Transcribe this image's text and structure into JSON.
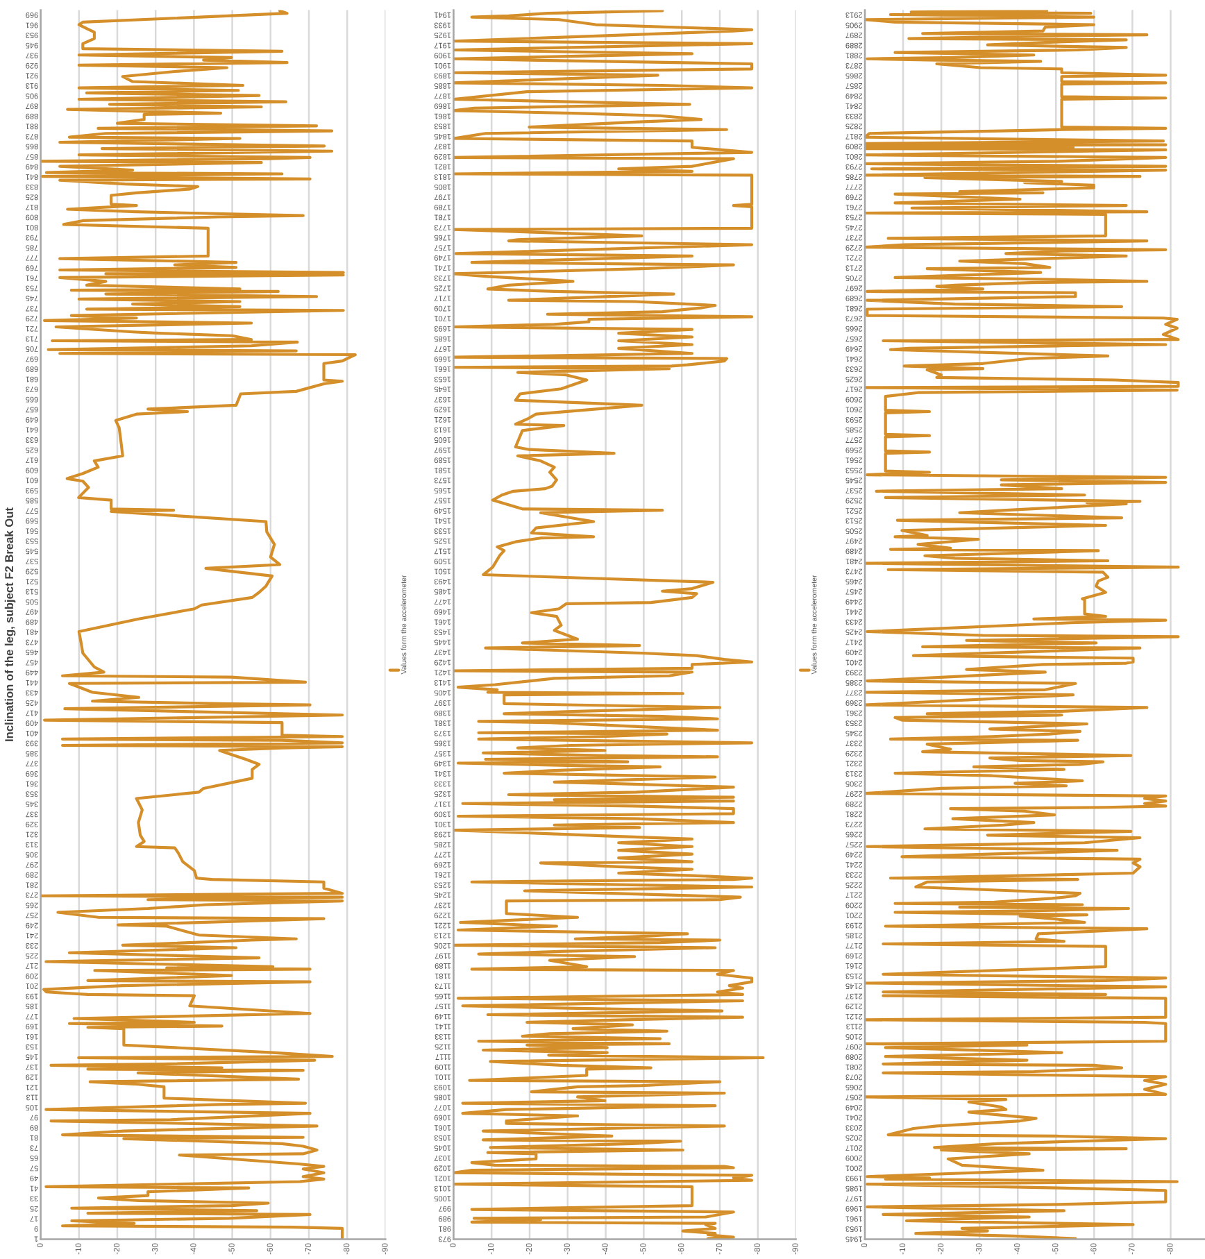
{
  "chart_data": [
    {
      "type": "line",
      "orientation": "horizontal",
      "title": "Inclination of the leg, subject F2 Break Out",
      "grid": "x",
      "legend": "right",
      "xlim": [
        0,
        -90
      ],
      "xticks": [
        0,
        -10,
        -20,
        -30,
        -40,
        -50,
        -60,
        -70,
        -80,
        -90
      ],
      "ylim": [
        0.5,
        972.5
      ],
      "yticks": [
        1,
        9,
        17,
        25,
        33,
        41,
        49,
        57,
        65,
        73,
        81,
        89,
        97,
        105,
        113,
        121,
        129,
        137,
        145,
        153,
        161,
        169,
        177,
        185,
        193,
        201,
        209,
        217,
        225,
        233,
        241,
        249,
        257,
        265,
        273,
        281,
        289,
        297,
        305,
        313,
        321,
        329,
        337,
        345,
        353,
        361,
        369,
        377,
        385,
        393,
        401,
        409,
        417,
        425,
        433,
        441,
        449,
        457,
        465,
        473,
        481,
        489,
        497,
        505,
        513,
        521,
        529,
        537,
        545,
        553,
        561,
        569,
        577,
        585,
        593,
        601,
        609,
        617,
        625,
        633,
        641,
        649,
        657,
        665,
        673,
        681,
        689,
        697,
        705,
        713,
        721,
        729,
        737,
        745,
        753,
        761,
        769,
        777,
        785,
        793,
        801,
        809,
        817,
        825,
        833,
        841,
        849,
        857,
        865,
        873,
        881,
        889,
        897,
        905,
        913,
        921,
        929,
        937,
        945,
        953,
        961,
        969
      ],
      "x": [
        1,
        9,
        10,
        11,
        13,
        15,
        17,
        20,
        21,
        23,
        25,
        27,
        29,
        31,
        33,
        35,
        38,
        41,
        42,
        46,
        48,
        50,
        53,
        56,
        58,
        60,
        67,
        68,
        71,
        74,
        76,
        80,
        81,
        83,
        86,
        90,
        94,
        95,
        100,
        103,
        107,
        108,
        112,
        121,
        123,
        125,
        127,
        132,
        134,
        135,
        136,
        138,
        139,
        142,
        144,
        145,
        148,
        152,
        154,
        167,
        168,
        169,
        171,
        172,
        175,
        179,
        185,
        193,
        194,
        196,
        198,
        201,
        204,
        205,
        209,
        213,
        214,
        215,
        216,
        220,
        223,
        227,
        231,
        233,
        237,
        238,
        241,
        248,
        249,
        254,
        255,
        259,
        262,
        265,
        268,
        269,
        271,
        272,
        274,
        278,
        283,
        285,
        286,
        292,
        299,
        306,
        310,
        311,
        315,
        320,
        330,
        340,
        349,
        354,
        357,
        365,
        372,
        376,
        380,
        385,
        387,
        389,
        390,
        391,
        393,
        395,
        396,
        398,
        399,
        409,
        411,
        415,
        420,
        423,
        424,
        426,
        429,
        433,
        440,
        441,
        445,
        446,
        449,
        453,
        464,
        473,
        481,
        491,
        499,
        502,
        508,
        512,
        517,
        525,
        531,
        534,
        540,
        550,
        560,
        568,
        576,
        577,
        578,
        585,
        587,
        595,
        600,
        602,
        606,
        611,
        616,
        620,
        630,
        642,
        648,
        653,
        655,
        657,
        660,
        669,
        671,
        677,
        679,
        680,
        693,
        695,
        700,
        701,
        703,
        704,
        707,
        710,
        711,
        712,
        715,
        717,
        718,
        722,
        725,
        727,
        729,
        731,
        735,
        736,
        738,
        740,
        742,
        744,
        746,
        748,
        750,
        751,
        752,
        755,
        758,
        761,
        763,
        764,
        765,
        767,
        769,
        771,
        773,
        776,
        778,
        800,
        803,
        806,
        809,
        810,
        813,
        815,
        818,
        819,
        826,
        828,
        831,
        833,
        835,
        838,
        839,
        841,
        843,
        844,
        846,
        849,
        852,
        853,
        855,
        856,
        858,
        861,
        863,
        865,
        868,
        871,
        872,
        875,
        877,
        879,
        881,
        883,
        886,
        890,
        891,
        894,
        896,
        898,
        900,
        902,
        905,
        907,
        909,
        911,
        913,
        916,
        920,
        924,
        927,
        929,
        931,
        933,
        935,
        937,
        940,
        942,
        946,
        950,
        955,
        958,
        961,
        963,
        970,
        972
      ],
      "series": [
        {
          "name": "Values form the accelerometer",
          "color": "#d58f2a",
          "values": [
            -78.7,
            -78.7,
            -65.7,
            -5.7,
            -24.4,
            -8.1,
            -49.2,
            -70.3,
            -12.3,
            -56.4,
            -8.1,
            -49.8,
            -59.4,
            -25.6,
            -15.1,
            -28,
            -28,
            -54.3,
            -1.4,
            -67.6,
            -73.9,
            -68.5,
            -73.9,
            -68.5,
            -73.9,
            -67.3,
            -36.2,
            -68.5,
            -72.1,
            -68.5,
            -63,
            -21.7,
            -68.5,
            -5.7,
            -21.7,
            -72.1,
            -2.7,
            -34,
            -70.3,
            -1.4,
            -46.7,
            -69.1,
            -32.2,
            -32.2,
            -25.4,
            -12.9,
            -67.3,
            -25.4,
            -68.5,
            -12.3,
            -47.3,
            -2.7,
            -31.9,
            -71.5,
            -9.9,
            -76.1,
            -60.6,
            -35,
            -21.7,
            -21.7,
            -12.3,
            -47.3,
            -7.5,
            -40.1,
            -8.7,
            -70.3,
            -38.9,
            -40.1,
            -12.3,
            -1.5,
            -0.8,
            -21.4,
            -70.3,
            -12.3,
            -49.8,
            -14.1,
            -70.3,
            -32.9,
            -60.6,
            -1.4,
            -57,
            -7.5,
            -51,
            -21.4,
            -55.2,
            -66.7,
            -41.3,
            -32.9,
            -20.2,
            -73.9,
            -15.1,
            -4.5,
            -28,
            -43.1,
            -78.7,
            -28,
            -78.7,
            0,
            -78.7,
            -73.9,
            -73.9,
            -44.7,
            -40.7,
            -40.1,
            -37.1,
            -35.9,
            -35,
            -25,
            -27,
            -26,
            -25.5,
            -26.5,
            -25,
            -41.3,
            -42.5,
            -55.2,
            -55.2,
            -57,
            -53.5,
            -48.6,
            -46.7,
            -63,
            -78.7,
            -5.7,
            -78.7,
            -63,
            -5.7,
            -78.7,
            -63,
            -63,
            -1,
            -78.7,
            -6.3,
            -70.3,
            -46.7,
            -13.5,
            -25.6,
            -13.5,
            -7.5,
            -69.1,
            -49.8,
            -5.7,
            -16.5,
            -14,
            -11,
            -10.5,
            -10,
            -25.6,
            -40.1,
            -42,
            -55.2,
            -57,
            -58.8,
            -60.4,
            -43.1,
            -62.4,
            -60,
            -61,
            -59,
            -58.8,
            -18.4,
            -34.7,
            -18.4,
            -18.4,
            -9.9,
            -12.5,
            -11,
            -6.9,
            -11,
            -15,
            -14,
            -21.4,
            -21,
            -20.5,
            -19.6,
            -25,
            -38.3,
            -28,
            -51,
            -52.2,
            -66.7,
            -73.9,
            -78.7,
            -73.9,
            -73.9,
            -78.7,
            -82.1,
            -5,
            -66.7,
            -2,
            -55,
            -67,
            -3,
            -55,
            -50,
            -31,
            -24,
            -4,
            -55,
            -1,
            -25,
            -8,
            -79,
            -12,
            -52,
            -24,
            -52,
            -10,
            -72,
            -17,
            -62,
            -8,
            -52,
            -12,
            -17,
            -5,
            -79,
            -17,
            -79,
            -5,
            -51,
            -35,
            -51,
            -5,
            -43.7,
            -43.7,
            -6,
            -11,
            -46.4,
            -68.5,
            -25,
            -7,
            -25,
            -18.4,
            -18.4,
            -25,
            -39,
            -41,
            -22,
            -5,
            -70.3,
            -0.5,
            -63,
            -1.5,
            -24,
            -5,
            -57.6,
            0,
            -59.4,
            -70.3,
            -10,
            -76,
            -16,
            -74,
            -5,
            -52,
            -7.5,
            -17,
            -76,
            -15,
            -72,
            -20,
            -27,
            -27,
            -47,
            -7,
            -57.6,
            -18,
            -64,
            -10,
            -57,
            -12,
            -51.6,
            -10,
            -52.8,
            -24,
            -21.4,
            -35,
            -48.6,
            -10,
            -64.3,
            -42.5,
            -49.8,
            -10,
            -63,
            -11,
            -11,
            -14,
            -14,
            -12,
            -10,
            -11,
            -64.3,
            -62.4
          ]
        }
      ]
    },
    {
      "type": "line",
      "orientation": "horizontal",
      "grid": "x",
      "legend": "right",
      "xlim": [
        0,
        -90
      ],
      "xticks": [
        0,
        -10,
        -20,
        -30,
        -40,
        -50,
        -60,
        -70,
        -80,
        -90
      ],
      "ylim": [
        972.5,
        1944.5
      ],
      "yticks": [
        973,
        981,
        989,
        997,
        1005,
        1013,
        1021,
        1029,
        1037,
        1045,
        1053,
        1061,
        1069,
        1077,
        1085,
        1093,
        1101,
        1109,
        1117,
        1125,
        1133,
        1141,
        1149,
        1157,
        1165,
        1173,
        1181,
        1189,
        1197,
        1205,
        1213,
        1221,
        1229,
        1237,
        1245,
        1253,
        1261,
        1269,
        1277,
        1285,
        1293,
        1301,
        1309,
        1317,
        1325,
        1333,
        1341,
        1349,
        1357,
        1365,
        1373,
        1381,
        1389,
        1397,
        1405,
        1413,
        1421,
        1429,
        1437,
        1445,
        1453,
        1461,
        1469,
        1477,
        1485,
        1493,
        1501,
        1509,
        1517,
        1525,
        1533,
        1541,
        1549,
        1557,
        1565,
        1573,
        1581,
        1589,
        1597,
        1605,
        1613,
        1621,
        1629,
        1637,
        1645,
        1653,
        1661,
        1669,
        1677,
        1685,
        1693,
        1701,
        1709,
        1717,
        1725,
        1733,
        1741,
        1749,
        1757,
        1765,
        1773,
        1781,
        1789,
        1797,
        1805,
        1813,
        1821,
        1829,
        1837,
        1845,
        1853,
        1861,
        1869,
        1877,
        1885,
        1893,
        1901,
        1909,
        1917,
        1925,
        1933,
        1941
      ],
      "x": [
        973,
        974,
        976,
        977,
        979,
        981,
        984,
        985,
        986,
        988,
        989,
        990,
        994,
        996,
        999,
        1014,
        1016,
        1019,
        1021,
        1023,
        1025,
        1027,
        1029,
        1030,
        1031,
        1033,
        1036,
        1040,
        1041,
        1043,
        1045,
        1048,
        1050,
        1051,
        1054,
        1058,
        1062,
        1064,
        1066,
        1070,
        1072,
        1075,
        1078,
        1080,
        1082,
        1085,
        1088,
        1089,
        1093,
        1094,
        1097,
        1098,
        1102,
        1107,
        1108,
        1110,
        1113,
        1116,
        1118,
        1120,
        1122,
        1124,
        1126,
        1127,
        1129,
        1131,
        1133,
        1135,
        1137,
        1139,
        1142,
        1144,
        1146,
        1148,
        1150,
        1153,
        1155,
        1157,
        1161,
        1163,
        1166,
        1168,
        1171,
        1173,
        1176,
        1179,
        1182,
        1185,
        1186,
        1188,
        1193,
        1196,
        1198,
        1200,
        1203,
        1205,
        1207,
        1209,
        1210,
        1212,
        1214,
        1217,
        1220,
        1223,
        1227,
        1230,
        1240,
        1241,
        1243,
        1248,
        1251,
        1255,
        1257,
        1258,
        1260,
        1262,
        1265,
        1267,
        1270,
        1271,
        1274,
        1277,
        1280,
        1283,
        1286,
        1289,
        1291,
        1296,
        1298,
        1300,
        1302,
        1305,
        1307,
        1309,
        1313,
        1315,
        1317,
        1319,
        1320,
        1322,
        1324,
        1326,
        1330,
        1333,
        1334,
        1338,
        1341,
        1343,
        1346,
        1347,
        1349,
        1350,
        1352,
        1354,
        1355,
        1357,
        1359,
        1361,
        1363,
        1365,
        1368,
        1370,
        1372,
        1373,
        1375,
        1381,
        1382,
        1384,
        1386,
        1388,
        1390,
        1393,
        1396,
        1403,
        1404,
        1405,
        1407,
        1409,
        1411,
        1416,
        1418,
        1421,
        1422,
        1424,
        1427,
        1429,
        1431,
        1434,
        1436,
        1440,
        1442,
        1444,
        1447,
        1454,
        1458,
        1465,
        1468,
        1471,
        1475,
        1476,
        1480,
        1483,
        1485,
        1487,
        1492,
        1498,
        1504,
        1513,
        1517,
        1520,
        1524,
        1527,
        1528,
        1531,
        1535,
        1540,
        1547,
        1549,
        1550,
        1557,
        1561,
        1564,
        1566,
        1568,
        1573,
        1579,
        1583,
        1588,
        1592,
        1594,
        1597,
        1599,
        1612,
        1616,
        1617,
        1621,
        1625,
        1632,
        1636,
        1641,
        1645,
        1652,
        1656,
        1658,
        1661,
        1662,
        1663,
        1664,
        1667,
        1669,
        1670,
        1673,
        1677,
        1680,
        1683,
        1686,
        1689,
        1692,
        1694,
        1696,
        1698,
        1700,
        1702,
        1704,
        1706,
        1709,
        1711,
        1714,
        1715,
        1720,
        1722,
        1724,
        1727,
        1730,
        1734,
        1736,
        1740,
        1743,
        1745,
        1750,
        1752,
        1759,
        1762,
        1763,
        1766,
        1771,
        1772,
        1789,
        1790,
        1791,
        1814,
        1815,
        1817,
        1819,
        1821,
        1827,
        1828,
        1832,
        1836,
        1841,
        1843,
        1847,
        1850,
        1852,
        1856,
        1858,
        1861,
        1863,
        1865,
        1867,
        1870,
        1874,
        1880,
        1883,
        1885,
        1887,
        1893,
        1895,
        1898,
        1902,
        1906,
        1910,
        1913,
        1918,
        1920,
        1928,
        1929,
        1933,
        1937,
        1939,
        1940,
        1942,
        1944
      ],
      "series": [
        {
          "name": "Values form the accelerometer",
          "color": "#d58f2a",
          "values": [
            -66.9,
            -73.6,
            -66.9,
            -68.8,
            -60.3,
            -68.8,
            -66.3,
            -68.8,
            -4.8,
            -22.9,
            -5.4,
            -66.3,
            -73.6,
            -4.8,
            -62.7,
            -62.7,
            0,
            -78.4,
            -73.6,
            -78.4,
            0,
            -4.8,
            -73.6,
            -71.2,
            -10.9,
            -4.8,
            -21.7,
            -21.7,
            -9,
            -60.3,
            -9.7,
            -47,
            -59.7,
            -7.8,
            -41.6,
            -7.8,
            -71.2,
            -13.9,
            -13.9,
            -32.6,
            -2.4,
            -13.9,
            -68.8,
            -2.4,
            -39.8,
            -32.6,
            -71.2,
            -20.5,
            -32.6,
            -49.5,
            -70,
            -4.2,
            -35,
            -35,
            -51.9,
            -28.3,
            -9.7,
            -81.4,
            -25,
            -40.4,
            -7.8,
            -40.4,
            -19.3,
            -56.7,
            -6.6,
            -54.3,
            -18.1,
            -25.3,
            -56.1,
            -31.4,
            -47,
            -19.3,
            -45,
            -76,
            -9,
            -70.6,
            -32.6,
            -2.4,
            -76,
            -1.2,
            -76,
            -69.4,
            -76,
            -72.5,
            -78.4,
            -78.4,
            -69.4,
            -73.6,
            -4.8,
            -35,
            -25.3,
            -47.6,
            -6.6,
            -27.7,
            -68.8,
            0,
            -54.3,
            -70,
            -32,
            -49.5,
            -61.5,
            -1.2,
            -27.1,
            -1.8,
            -32.6,
            -13.9,
            -13.9,
            -70,
            -75.4,
            -18.7,
            -78.4,
            -4.8,
            -73.6,
            -78.4,
            -62.7,
            -43.4,
            -62.7,
            -43.4,
            -22.9,
            -62.7,
            -43.4,
            -62.7,
            -43.4,
            -62.7,
            -43.4,
            -62.7,
            -43.4,
            0,
            -48.9,
            -26.5,
            -73.6,
            -48.3,
            -1.2,
            -73.6,
            -73.6,
            -47.6,
            -2.4,
            -73.6,
            -26.5,
            -73.6,
            -14.5,
            -48,
            -73.6,
            -39.8,
            -26.5,
            -68.8,
            -13.3,
            -25.3,
            -54.3,
            -32,
            -1.2,
            -45.8,
            -8.4,
            -69.4,
            -38.6,
            -7.8,
            -39.8,
            -16.9,
            -30.8,
            -78.4,
            -6.6,
            -39.2,
            -56.1,
            -6.6,
            -69.4,
            -25.3,
            -6.6,
            -69.4,
            -54.9,
            -13.3,
            -32.6,
            -70,
            -13.3,
            -13.3,
            -60.3,
            -9,
            -11.5,
            -1.2,
            -10.9,
            -26.5,
            -56.7,
            -62.7,
            0,
            -62.7,
            -62.7,
            -78.4,
            -71.2,
            -63.9,
            -49.5,
            -8.4,
            -48.9,
            -18.1,
            -32.6,
            -26.5,
            -28.3,
            -27.1,
            -20.5,
            -27.7,
            -29.6,
            -51.9,
            -62.7,
            -63.9,
            -54.9,
            -62.7,
            -68.2,
            -7.8,
            -10.3,
            -12.1,
            -13.3,
            -11.5,
            -16.3,
            -22.9,
            -36.8,
            -20.5,
            -21.7,
            -36.8,
            -22.9,
            -54.9,
            -18.1,
            -10.3,
            -12.7,
            -15.7,
            -24.1,
            -25.9,
            -27.1,
            -25.3,
            -26.5,
            -22.9,
            -16.9,
            -42.2,
            -19.9,
            -16.3,
            -18.1,
            -29,
            -16.3,
            -19.3,
            -21.7,
            -49.5,
            -16.3,
            -17.5,
            -28.3,
            -35,
            -29.6,
            -16.9,
            -56.7,
            0,
            -57.3,
            -61.5,
            -71.2,
            -71.8,
            0,
            -62.7,
            -43.4,
            -62.7,
            -43.4,
            -62.7,
            -43.4,
            -62.7,
            0,
            -26.5,
            -35.6,
            -35.6,
            -78.4,
            -24.7,
            -54.9,
            -65,
            -68.8,
            -47.6,
            -14.5,
            -57.9,
            -26.5,
            -9,
            -14.5,
            -31.4,
            -8.4,
            0,
            -49.5,
            -73.6,
            -4.8,
            -62.7,
            -0.6,
            -78.4,
            -14.5,
            -16.9,
            -49.5,
            0,
            -78.4,
            -78.4,
            -73.6,
            -78.4,
            -78.4,
            0,
            -62.7,
            -43.4,
            -62.7,
            -73.6,
            0,
            -78.4,
            -62.7,
            -62.7,
            0,
            -8.4,
            -71.8,
            -19.9,
            -47.6,
            -65.1,
            -54.3,
            -31.4,
            0,
            -5.4,
            -62.1,
            0,
            -19.3,
            -78.4,
            -54.9,
            0,
            -53.7,
            0,
            -78.4,
            -78.4,
            0,
            -62.7,
            0,
            -78.4,
            0,
            -73.6,
            -78.4,
            -37.4,
            -27.7,
            -4.8,
            -14.5,
            -24.7,
            -54.9
          ]
        }
      ]
    },
    {
      "type": "line",
      "orientation": "horizontal",
      "grid": "x",
      "xlim": [
        0,
        -89
      ],
      "xticks": [
        0,
        -10,
        -20,
        -30,
        -40,
        -50,
        -60,
        -70,
        -80
      ],
      "ylim": [
        1944.5,
        2916.5
      ],
      "yticks": [
        1945,
        1953,
        1961,
        1969,
        1977,
        1985,
        1993,
        2001,
        2009,
        2017,
        2025,
        2033,
        2041,
        2049,
        2057,
        2065,
        2073,
        2081,
        2089,
        2097,
        2105,
        2113,
        2121,
        2129,
        2137,
        2145,
        2153,
        2161,
        2169,
        2177,
        2185,
        2193,
        2201,
        2209,
        2217,
        2225,
        2233,
        2241,
        2249,
        2257,
        2265,
        2273,
        2281,
        2289,
        2297,
        2305,
        2313,
        2321,
        2329,
        2337,
        2345,
        2353,
        2361,
        2369,
        2377,
        2385,
        2393,
        2401,
        2409,
        2417,
        2425,
        2433,
        2441,
        2449,
        2457,
        2465,
        2473,
        2481,
        2489,
        2497,
        2505,
        2513,
        2521,
        2529,
        2537,
        2545,
        2553,
        2561,
        2569,
        2577,
        2585,
        2593,
        2601,
        2609,
        2617,
        2625,
        2633,
        2641,
        2649,
        2657,
        2665,
        2673,
        2681,
        2689,
        2697,
        2705,
        2713,
        2721,
        2729,
        2737,
        2745,
        2753,
        2761,
        2769,
        2777,
        2785,
        2793,
        2801,
        2809,
        2817,
        2825,
        2833,
        2841,
        2849,
        2857,
        2865,
        2873,
        2881,
        2889,
        2897,
        2905,
        2913
      ],
      "x": [
        1945,
        1947,
        1949,
        1951,
        1953,
        1956,
        1959,
        1960,
        1962,
        1964,
        1967,
        1970,
        1972,
        1974,
        1976,
        1983,
        1985,
        1988,
        1990,
        1992,
        1993,
        1994,
        1999,
        2003,
        2008,
        2012,
        2015,
        2016,
        2017,
        2020,
        2022,
        2024,
        2026,
        2027,
        2032,
        2034,
        2038,
        2040,
        2045,
        2047,
        2049,
        2053,
        2055,
        2057,
        2059,
        2063,
        2067,
        2070,
        2073,
        2076,
        2077,
        2080,
        2082,
        2083,
        2086,
        2089,
        2092,
        2096,
        2098,
        2099,
        2101,
        2115,
        2116,
        2118,
        2120,
        2135,
        2137,
        2138,
        2140,
        2144,
        2147,
        2149,
        2151,
        2154,
        2160,
        2176,
        2178,
        2180,
        2182,
        2186,
        2190,
        2192,
        2195,
        2198,
        2200,
        2201,
        2203,
        2204,
        2206,
        2207,
        2209,
        2210,
        2211,
        2214,
        2216,
        2218,
        2223,
        2227,
        2229,
        2230,
        2232,
        2234,
        2239,
        2242,
        2245,
        2247,
        2252,
        2255,
        2258,
        2262,
        2264,
        2267,
        2269,
        2272,
        2274,
        2277,
        2280,
        2283,
        2285,
        2286,
        2287,
        2289,
        2291,
        2293,
        2295,
        2297,
        2301,
        2303,
        2305,
        2307,
        2311,
        2313,
        2316,
        2318,
        2320,
        2322,
        2323,
        2325,
        2327,
        2330,
        2332,
        2336,
        2339,
        2340,
        2342,
        2344,
        2346,
        2348,
        2352,
        2355,
        2357,
        2359,
        2360,
        2362,
        2365,
        2367,
        2375,
        2377,
        2379,
        2384,
        2386,
        2393,
        2395,
        2399,
        2400,
        2401,
        2404,
        2406,
        2412,
        2413,
        2416,
        2418,
        2421,
        2422,
        2425,
        2432,
        2434,
        2435,
        2437,
        2439,
        2450,
        2451,
        2456,
        2461,
        2465,
        2468,
        2472,
        2474,
        2476,
        2479,
        2481,
        2483,
        2485,
        2489,
        2490,
        2491,
        2494,
        2498,
        2500,
        2501,
        2505,
        2509,
        2513,
        2515,
        2519,
        2521,
        2526,
        2527,
        2528,
        2531,
        2533,
        2536,
        2538,
        2541,
        2543,
        2545,
        2547,
        2549,
        2551,
        2552,
        2566,
        2567,
        2568,
        2579,
        2580,
        2581,
        2598,
        2599,
        2600,
        2611,
        2614,
        2616,
        2618,
        2619,
        2622,
        2624,
        2626,
        2628,
        2632,
        2633,
        2635,
        2637,
        2641,
        2643,
        2644,
        2648,
        2649,
        2651,
        2652,
        2655,
        2656,
        2660,
        2665,
        2668,
        2672,
        2673,
        2675,
        2680,
        2682,
        2684,
        2687,
        2690,
        2693,
        2694,
        2696,
        2698,
        2699,
        2701,
        2702,
        2704,
        2705,
        2709,
        2712,
        2713,
        2716,
        2718,
        2722,
        2724,
        2726,
        2727,
        2729,
        2731,
        2734,
        2736,
        2738,
        2755,
        2756,
        2757,
        2760,
        2762,
        2764,
        2767,
        2771,
        2772,
        2773,
        2776,
        2778,
        2780,
        2781,
        2784,
        2785,
        2786,
        2790,
        2791,
        2793,
        2795,
        2797,
        2800,
        2802,
        2806,
        2807,
        2808,
        2809,
        2810,
        2811,
        2813,
        2814,
        2816,
        2819,
        2821,
        2822,
        2823,
        2824,
        2846,
        2847,
        2848,
        2858,
        2859,
        2860,
        2864,
        2865,
        2867,
        2870,
        2871,
        2874,
        2876,
        2877,
        2878,
        2879,
        2881,
        2883,
        2885,
        2887,
        2889,
        2891,
        2893,
        2894,
        2896,
        2897,
        2898,
        2900,
        2903,
        2905,
        2907,
        2909,
        2911,
        2913,
        2914,
        2915,
        2916
      ],
      "series": [
        {
          "color": "#d58f2a",
          "values": [
            -55.1,
            -38.7,
            -13.3,
            -32.1,
            -25.4,
            -70.2,
            -10.9,
            -18.2,
            -43,
            -4.8,
            -52.1,
            -0.6,
            -50.8,
            -78.7,
            -78.7,
            -78.7,
            -50.8,
            -0.6,
            -81.7,
            -5.4,
            -16.9,
            -0.6,
            -46.6,
            -25.4,
            -21.8,
            -43,
            -20,
            -68.4,
            -18.2,
            -34.5,
            -56.3,
            -78.7,
            -50.2,
            -6.1,
            -12.7,
            -18.8,
            -40.6,
            -44.8,
            -27.2,
            -36.9,
            -35.7,
            -27.2,
            -36.9,
            0,
            -78.7,
            -73.2,
            -78.7,
            -73.2,
            -78.7,
            -4.8,
            -44.2,
            -67.2,
            -59.9,
            -4.8,
            -42.4,
            -5.4,
            -51.5,
            -5.4,
            -42.4,
            0,
            -78.7,
            -78.7,
            -73.2,
            0,
            -78.7,
            -78.7,
            -4.8,
            -63,
            -4.8,
            -78.7,
            0,
            -63,
            -78.7,
            -4.8,
            -63,
            -63,
            -4.8,
            -52.1,
            -44.8,
            -45.4,
            -73.8,
            -5.4,
            -57.5,
            -49,
            -40.6,
            -58.1,
            -7.9,
            -40.6,
            -69,
            -24.8,
            -56.9,
            -7.9,
            -33.9,
            -49,
            -55.1,
            -56.3,
            -13.3,
            -16.3,
            -55.7,
            -6.7,
            -40.6,
            -70.2,
            -72,
            -70.2,
            -72,
            -9.7,
            -66,
            -0.6,
            -57.5,
            -72,
            -32.1,
            -69.6,
            -15.7,
            -36.3,
            -44.2,
            -23,
            -49.6,
            -41.8,
            -22.4,
            -63,
            -78.7,
            -73.2,
            -78.7,
            -73.2,
            -78.7,
            0,
            -20,
            -52.7,
            -39.3,
            -56.9,
            -33.3,
            -7.9,
            -52.1,
            -28.5,
            -56.3,
            -62.3,
            -40.6,
            -32.7,
            -69.6,
            -15.1,
            -22.4,
            -16.3,
            -55.7,
            -6.7,
            -33.3,
            -48.4,
            -56.3,
            -32.7,
            -58.1,
            -9.7,
            -7.9,
            -51.5,
            -16.3,
            -51.5,
            -73.8,
            0,
            -54.5,
            0,
            -47.2,
            -55.1,
            -0.6,
            -47.2,
            -26.6,
            -46.6,
            -68.4,
            -70.2,
            -70.2,
            -12.7,
            -72,
            -15.1,
            -60.5,
            -26.6,
            -82,
            -30.9,
            -0.6,
            -53.9,
            -78.7,
            -44.2,
            -63,
            -57.5,
            -57.5,
            -56.9,
            -63,
            -60.5,
            -61.1,
            -63.6,
            -62.3,
            -6.1,
            -82,
            0,
            -63.6,
            -23.6,
            -15.7,
            -61.1,
            -6.7,
            -22.4,
            -13.9,
            -29.7,
            -7.9,
            -16.3,
            -9.7,
            -63,
            -8.5,
            -67.2,
            -24.8,
            -36.9,
            -68.4,
            -58.1,
            -72,
            -5.4,
            -57.5,
            -3,
            -51.5,
            -35.7,
            -78.7,
            -35.7,
            -78.7,
            -0.6,
            -16.9,
            -5.4,
            -5.4,
            -16.9,
            -5.4,
            -5.4,
            -16.9,
            -5.4,
            -5.4,
            -16.9,
            -5.4,
            -5.4,
            -13.9,
            -81.7,
            0,
            -82,
            -82,
            -65.4,
            -18.8,
            -20,
            -16.3,
            -30.9,
            -10.3,
            -30.9,
            -43,
            -63.6,
            -52.1,
            -6.7,
            -11.5,
            -51.5,
            -78.7,
            -4.8,
            -82,
            -78.1,
            -81.7,
            -78.7,
            -81.7,
            -78.1,
            -0.6,
            -0.6,
            -67.2,
            -23.6,
            -0.6,
            -55.1,
            -55.1,
            -0.6,
            -30.9,
            -18.8,
            -23.6,
            -43.6,
            -73.8,
            -39.3,
            -7.9,
            -46,
            -16.3,
            -48.4,
            -41.8,
            -24.8,
            -68.4,
            -36.9,
            -51.5,
            -78.7,
            0,
            -10.3,
            -73.8,
            -6.1,
            -63,
            -63,
            0,
            -73.8,
            -12.3,
            -68.4,
            -7.9,
            -40.6,
            -7.9,
            -46.6,
            -24.8,
            -59.9,
            -59.9,
            -41.8,
            -51.5,
            -15.7,
            -72,
            0,
            -78.7,
            -1.8,
            -78.7,
            0,
            -50.8,
            -78.7,
            0,
            -78.7,
            0,
            -54.5,
            0,
            -78.7,
            0,
            -78.1,
            -50.8,
            0,
            -1.2,
            -35.7,
            -51.5,
            -78.7,
            -51.5,
            -51.5,
            -78.7,
            -51.5,
            -51.5,
            -78.7,
            -51.5,
            -51.5,
            -78.7,
            -51.5,
            -51.5,
            -30.3,
            -18.8,
            -46,
            -18.8,
            -0.6,
            -23.6,
            -44.2,
            -7.9,
            -55.7,
            -68.4,
            -32.1,
            -47.2,
            -68.4,
            -11.5,
            -47.2,
            -73.8,
            -15.1,
            -46.6,
            -47.2,
            -59.9,
            -7.9,
            0,
            -59.9,
            -6.7,
            -59.1,
            -12.1,
            -47.6
          ]
        }
      ]
    }
  ]
}
